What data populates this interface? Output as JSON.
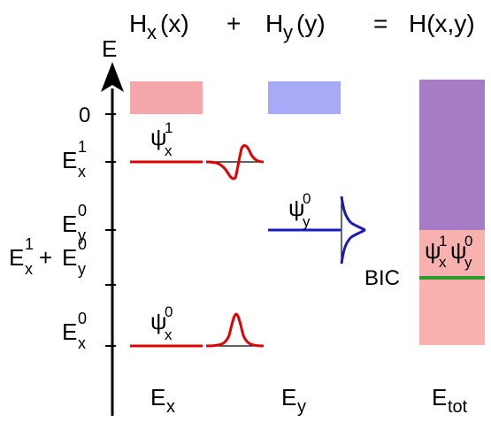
{
  "equation": {
    "term1_main": "H",
    "term1_sub": "x",
    "term1_arg": "(x)",
    "plus": "+",
    "term2_main": "H",
    "term2_sub": "y",
    "term2_arg": "(y)",
    "equals": "=",
    "total": "H(x,y)"
  },
  "axis": {
    "label": "E",
    "zero_label": "0",
    "ticks": [
      {
        "main": "E",
        "sup": "1",
        "sub": "x"
      },
      {
        "main": "E",
        "sup": "0",
        "sub": "y"
      },
      {
        "main": "E",
        "sup": "0",
        "sub": "x"
      }
    ],
    "sum_tick": {
      "a_main": "E",
      "a_sup": "1",
      "a_sub": "x",
      "plus": "+",
      "b_main": "E",
      "b_sup": "0",
      "b_sub": "y"
    }
  },
  "columns": {
    "ex": {
      "main": "E",
      "sub": "x"
    },
    "ey": {
      "main": "E",
      "sub": "y"
    },
    "etot": {
      "main": "E",
      "sub": "tot"
    }
  },
  "levels": {
    "psi_x1": {
      "main": "ψ",
      "sup": "1",
      "sub": "x"
    },
    "psi_y0": {
      "main": "ψ",
      "sup": "0",
      "sub": "y"
    },
    "psi_x0": {
      "main": "ψ",
      "sup": "0",
      "sub": "x"
    }
  },
  "bic": {
    "label": "BIC",
    "state": {
      "m1": "ψ",
      "s1sup": "1",
      "s1sub": "x",
      "m2": "ψ",
      "s2sup": "0",
      "s2sub": "y"
    }
  },
  "colors": {
    "continuum_x": "#f4a6a8",
    "continuum_y": "#a9aaf7",
    "purple": "#a77bc6",
    "pink": "#f9b1b0",
    "level_red": "#e00000",
    "level_blue": "#1a1ab8",
    "bic_green": "#2a9a2a"
  }
}
